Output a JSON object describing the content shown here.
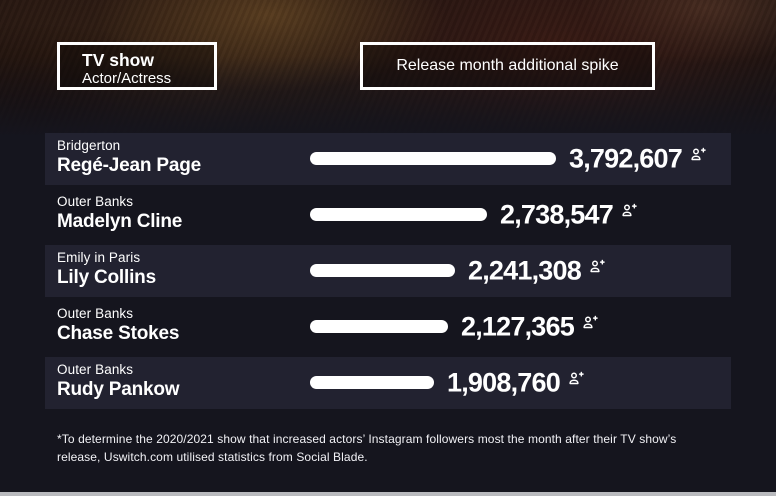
{
  "legend": {
    "left_title": "TV show",
    "left_subtitle": "Actor/Actress",
    "right_label": "Release month additional spike"
  },
  "chart_data": {
    "type": "bar",
    "orientation": "horizontal",
    "value_meaning": "Release month additional Instagram follower spike",
    "bar_color": "#ffffff",
    "legend_position": "top",
    "rows": [
      {
        "show": "Bridgerton",
        "actor": "Regé-Jean Page",
        "value": 3792607,
        "label": "3,792,607"
      },
      {
        "show": "Outer Banks",
        "actor": "Madelyn Cline",
        "value": 2738547,
        "label": "2,738,547"
      },
      {
        "show": "Emily in Paris",
        "actor": "Lily Collins",
        "value": 2241308,
        "label": "2,241,308"
      },
      {
        "show": "Outer Banks",
        "actor": "Chase Stokes",
        "value": 2127365,
        "label": "2,127,365"
      },
      {
        "show": "Outer Banks",
        "actor": "Rudy Pankow",
        "value": 1908760,
        "label": "1,908,760"
      }
    ]
  },
  "footer": {
    "note": "*To determine the 2020/2021 show that increased actors’ Instagram followers most the month after their TV show’s release, Uswitch.com utilised statistics from Social Blade."
  },
  "colors": {
    "page_background": "#15151e",
    "row_band": "#222230",
    "bar": "#ffffff",
    "text": "#ffffff"
  },
  "icons": {
    "value_icon": "person-add-icon"
  }
}
